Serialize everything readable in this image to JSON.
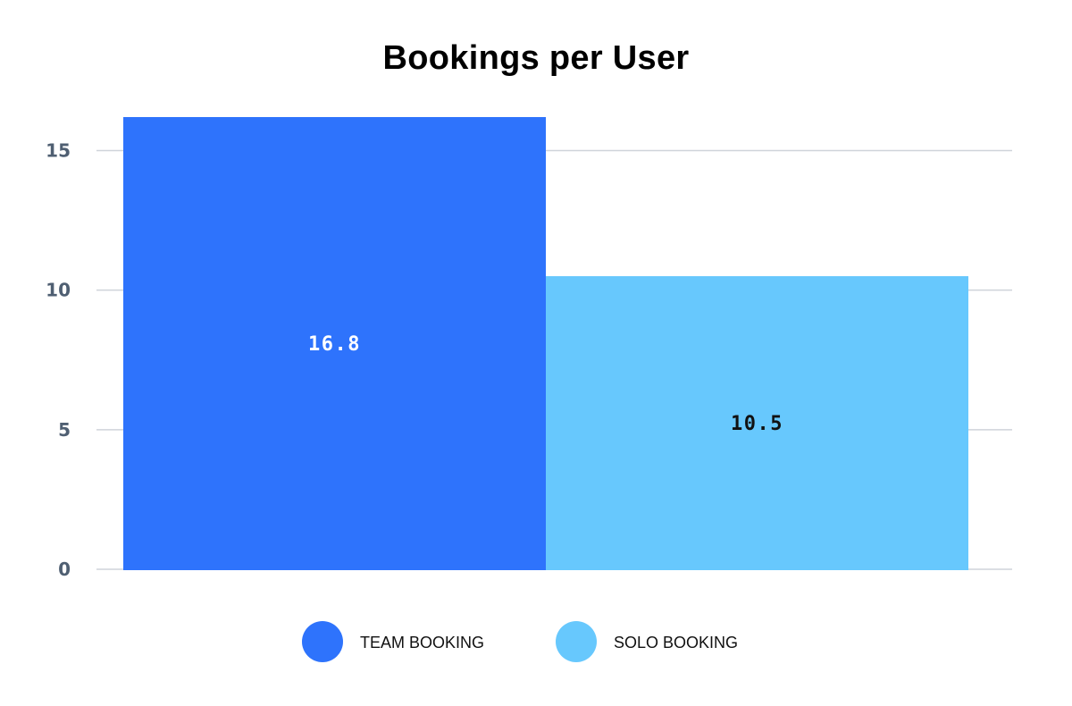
{
  "chart_data": {
    "type": "bar",
    "title": "Bookings per User",
    "xlabel": "",
    "ylabel": "",
    "ylim": [
      0,
      16.2
    ],
    "yticks": [
      0,
      5,
      10,
      15
    ],
    "grid": true,
    "legend_position": "bottom",
    "categories": [
      "TEAM BOOKING",
      "SOLO BOOKING"
    ],
    "values": [
      16.8,
      10.5
    ],
    "data_labels": [
      "16.8",
      "10.5"
    ],
    "colors": [
      "#2e73fc",
      "#67c8fd"
    ],
    "data_label_colors": [
      "#ffffff",
      "#111111"
    ],
    "grid_color": "#cfd3da"
  }
}
